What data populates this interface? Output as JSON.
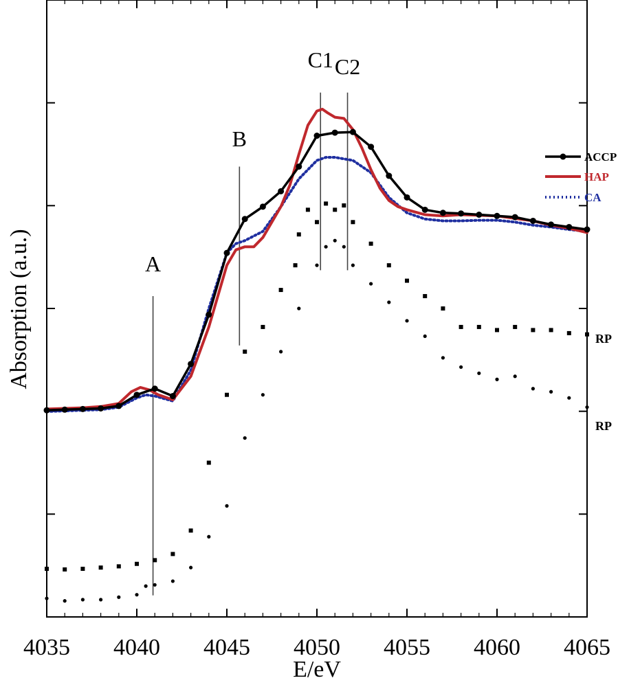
{
  "chart_data": {
    "type": "line",
    "title": "",
    "xlabel": "E/eV",
    "ylabel": "Absorption (a.u.)",
    "xlim": [
      4035,
      4065
    ],
    "ylim": [
      0,
      1
    ],
    "grid": false,
    "x_ticks": [
      4035,
      4040,
      4045,
      4050,
      4055,
      4060,
      4065
    ],
    "feature_markers": [
      {
        "label": "A",
        "x": 4040.9
      },
      {
        "label": "B",
        "x": 4045.7
      },
      {
        "label": "C1",
        "x": 4050.2
      },
      {
        "label": "C2",
        "x": 4051.7
      }
    ],
    "legend": {
      "position": "right",
      "entries": [
        "ACCP",
        "HAP",
        "CA"
      ]
    },
    "series": [
      {
        "name": "ACCP",
        "color": "#000000",
        "style": "solid-markers",
        "points": [
          [
            4035,
            0.335
          ],
          [
            4036,
            0.336
          ],
          [
            4037,
            0.337
          ],
          [
            4038,
            0.338
          ],
          [
            4039,
            0.342
          ],
          [
            4040,
            0.36
          ],
          [
            4041,
            0.37
          ],
          [
            4042,
            0.358
          ],
          [
            4043,
            0.41
          ],
          [
            4044,
            0.49
          ],
          [
            4045,
            0.59
          ],
          [
            4046,
            0.645
          ],
          [
            4047,
            0.665
          ],
          [
            4048,
            0.69
          ],
          [
            4049,
            0.73
          ],
          [
            4050,
            0.78
          ],
          [
            4051,
            0.785
          ],
          [
            4052,
            0.786
          ],
          [
            4053,
            0.762
          ],
          [
            4054,
            0.715
          ],
          [
            4055,
            0.68
          ],
          [
            4056,
            0.66
          ],
          [
            4057,
            0.655
          ],
          [
            4058,
            0.654
          ],
          [
            4059,
            0.652
          ],
          [
            4060,
            0.65
          ],
          [
            4061,
            0.648
          ],
          [
            4062,
            0.642
          ],
          [
            4063,
            0.636
          ],
          [
            4064,
            0.632
          ],
          [
            4065,
            0.628
          ]
        ]
      },
      {
        "name": "HAP",
        "color": "#c0282d",
        "style": "solid",
        "points": [
          [
            4035,
            0.337
          ],
          [
            4036,
            0.338
          ],
          [
            4037,
            0.339
          ],
          [
            4038,
            0.341
          ],
          [
            4039,
            0.346
          ],
          [
            4039.7,
            0.365
          ],
          [
            4040.2,
            0.372
          ],
          [
            4040.7,
            0.368
          ],
          [
            4041.2,
            0.36
          ],
          [
            4042,
            0.352
          ],
          [
            4043,
            0.39
          ],
          [
            4044,
            0.47
          ],
          [
            4045,
            0.57
          ],
          [
            4045.5,
            0.595
          ],
          [
            4046,
            0.6
          ],
          [
            4046.5,
            0.6
          ],
          [
            4047,
            0.615
          ],
          [
            4047.5,
            0.64
          ],
          [
            4048,
            0.665
          ],
          [
            4048.5,
            0.7
          ],
          [
            4049,
            0.75
          ],
          [
            4049.5,
            0.797
          ],
          [
            4050,
            0.82
          ],
          [
            4050.3,
            0.823
          ],
          [
            4050.6,
            0.817
          ],
          [
            4051,
            0.81
          ],
          [
            4051.5,
            0.808
          ],
          [
            4052,
            0.79
          ],
          [
            4052.5,
            0.76
          ],
          [
            4053,
            0.725
          ],
          [
            4053.5,
            0.695
          ],
          [
            4054,
            0.675
          ],
          [
            4054.5,
            0.665
          ],
          [
            4055,
            0.66
          ],
          [
            4055.5,
            0.656
          ],
          [
            4056,
            0.652
          ],
          [
            4057,
            0.65
          ],
          [
            4058,
            0.652
          ],
          [
            4059,
            0.651
          ],
          [
            4060,
            0.65
          ],
          [
            4061,
            0.646
          ],
          [
            4062,
            0.642
          ],
          [
            4063,
            0.635
          ],
          [
            4064,
            0.63
          ],
          [
            4065,
            0.623
          ]
        ]
      },
      {
        "name": "CA",
        "color": "#1f2fa0",
        "style": "dotted",
        "points": [
          [
            4035,
            0.333
          ],
          [
            4036,
            0.334
          ],
          [
            4037,
            0.335
          ],
          [
            4038,
            0.336
          ],
          [
            4039,
            0.34
          ],
          [
            4040,
            0.355
          ],
          [
            4040.5,
            0.36
          ],
          [
            4041,
            0.358
          ],
          [
            4042,
            0.35
          ],
          [
            4043,
            0.4
          ],
          [
            4044,
            0.5
          ],
          [
            4045,
            0.59
          ],
          [
            4045.5,
            0.605
          ],
          [
            4046,
            0.61
          ],
          [
            4047,
            0.625
          ],
          [
            4048,
            0.665
          ],
          [
            4049,
            0.71
          ],
          [
            4050,
            0.74
          ],
          [
            4050.5,
            0.745
          ],
          [
            4051,
            0.745
          ],
          [
            4052,
            0.74
          ],
          [
            4053,
            0.72
          ],
          [
            4054,
            0.68
          ],
          [
            4055,
            0.655
          ],
          [
            4056,
            0.645
          ],
          [
            4057,
            0.642
          ],
          [
            4058,
            0.642
          ],
          [
            4059,
            0.643
          ],
          [
            4060,
            0.643
          ],
          [
            4061,
            0.64
          ],
          [
            4062,
            0.635
          ],
          [
            4063,
            0.632
          ],
          [
            4064,
            0.628
          ],
          [
            4065,
            0.625
          ]
        ]
      },
      {
        "name": "RP",
        "color": "#000000",
        "style": "square-markers",
        "points": [
          [
            4035,
            0.078
          ],
          [
            4036,
            0.077
          ],
          [
            4037,
            0.078
          ],
          [
            4038,
            0.08
          ],
          [
            4039,
            0.082
          ],
          [
            4040,
            0.086
          ],
          [
            4041,
            0.092
          ],
          [
            4042,
            0.102
          ],
          [
            4043,
            0.14
          ],
          [
            4044,
            0.25
          ],
          [
            4045,
            0.36
          ],
          [
            4046,
            0.43
          ],
          [
            4047,
            0.47
          ],
          [
            4048,
            0.53
          ],
          [
            4049,
            0.62
          ],
          [
            4050,
            0.64
          ],
          [
            4050.5,
            0.67
          ],
          [
            4051,
            0.66
          ],
          [
            4051.5,
            0.667
          ],
          [
            4052,
            0.64
          ],
          [
            4053,
            0.605
          ],
          [
            4054,
            0.57
          ],
          [
            4055,
            0.545
          ],
          [
            4056,
            0.52
          ],
          [
            4057,
            0.5
          ],
          [
            4058,
            0.47
          ],
          [
            4059,
            0.47
          ],
          [
            4060,
            0.465
          ],
          [
            4061,
            0.47
          ],
          [
            4062,
            0.465
          ],
          [
            4063,
            0.465
          ],
          [
            4064,
            0.46
          ],
          [
            4065,
            0.458
          ],
          [
            4048.8,
            0.57
          ],
          [
            4049.5,
            0.66
          ]
        ]
      },
      {
        "name": "RP",
        "color": "#000000",
        "style": "dot-markers",
        "points": [
          [
            4035,
            0.03
          ],
          [
            4036,
            0.026
          ],
          [
            4037,
            0.028
          ],
          [
            4038,
            0.028
          ],
          [
            4039,
            0.032
          ],
          [
            4040,
            0.036
          ],
          [
            4040.5,
            0.05
          ],
          [
            4041,
            0.052
          ],
          [
            4042,
            0.058
          ],
          [
            4043,
            0.08
          ],
          [
            4044,
            0.13
          ],
          [
            4045,
            0.18
          ],
          [
            4046,
            0.29
          ],
          [
            4047,
            0.36
          ],
          [
            4048,
            0.43
          ],
          [
            4049,
            0.5
          ],
          [
            4050,
            0.57
          ],
          [
            4050.5,
            0.6
          ],
          [
            4051,
            0.61
          ],
          [
            4051.5,
            0.6
          ],
          [
            4052,
            0.57
          ],
          [
            4053,
            0.54
          ],
          [
            4054,
            0.51
          ],
          [
            4055,
            0.48
          ],
          [
            4056,
            0.455
          ],
          [
            4057,
            0.42
          ],
          [
            4058,
            0.405
          ],
          [
            4059,
            0.395
          ],
          [
            4060,
            0.385
          ],
          [
            4061,
            0.39
          ],
          [
            4062,
            0.37
          ],
          [
            4063,
            0.365
          ],
          [
            4064,
            0.355
          ],
          [
            4065,
            0.34
          ]
        ]
      }
    ],
    "series_labels": [
      "RP",
      "RP"
    ]
  }
}
